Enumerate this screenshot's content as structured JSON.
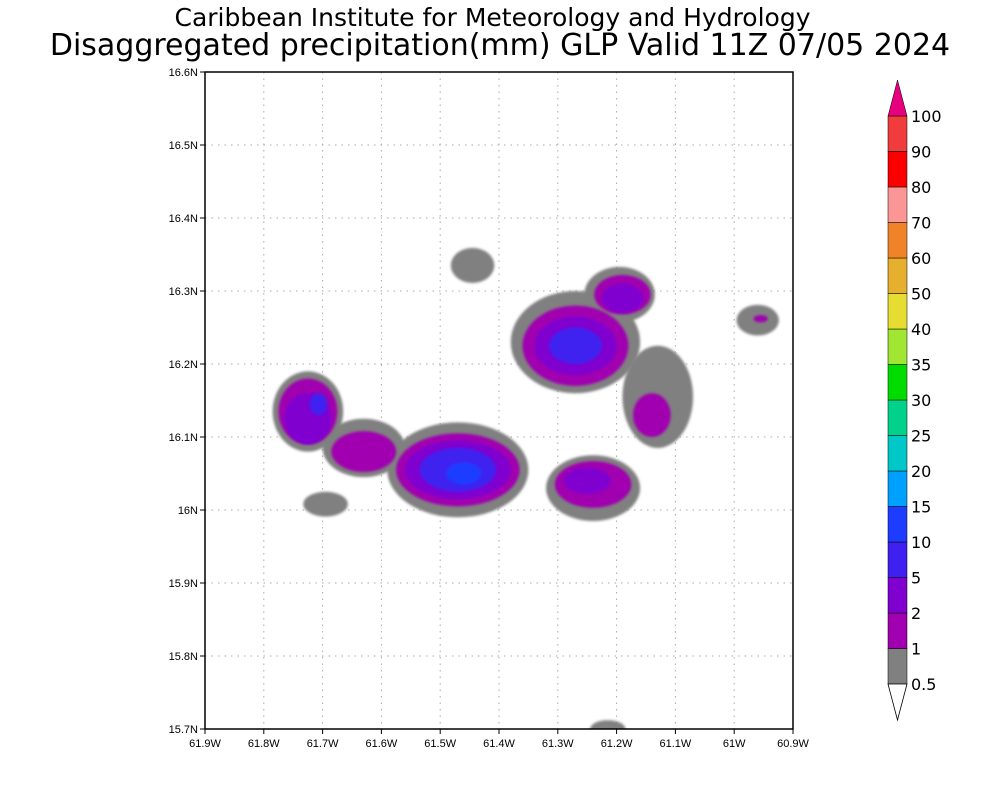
{
  "header": {
    "title_line1": "Caribbean Institute for Meteorology and Hydrology",
    "title_line2": "Disaggregated precipitation(mm) GLP Valid 11Z 07/05 2024"
  },
  "map": {
    "lon_range": [
      -61.9,
      -60.9
    ],
    "lat_range": [
      15.7,
      16.6
    ],
    "x_tick_labels": [
      "61.9W",
      "61.8W",
      "61.7W",
      "61.6W",
      "61.5W",
      "61.4W",
      "61.3W",
      "61.2W",
      "61.1W",
      "61W",
      "60.9W"
    ],
    "y_tick_labels": [
      "15.7N",
      "15.8N",
      "15.9N",
      "16N",
      "16.1N",
      "16.2N",
      "16.3N",
      "16.4N",
      "16.5N",
      "16.6N"
    ],
    "grid": "dotted",
    "precip_cells": [
      {
        "lon": -61.725,
        "lat": 16.135,
        "rx": 0.06,
        "ry": 0.055,
        "level": 0.5
      },
      {
        "lon": -61.63,
        "lat": 16.085,
        "rx": 0.07,
        "ry": 0.04,
        "level": 0.5
      },
      {
        "lon": -61.47,
        "lat": 16.055,
        "rx": 0.12,
        "ry": 0.065,
        "level": 0.5
      },
      {
        "lon": -61.695,
        "lat": 16.008,
        "rx": 0.038,
        "ry": 0.017,
        "level": 0.5
      },
      {
        "lon": -61.445,
        "lat": 16.335,
        "rx": 0.037,
        "ry": 0.024,
        "level": 0.5
      },
      {
        "lon": -61.27,
        "lat": 16.23,
        "rx": 0.11,
        "ry": 0.07,
        "level": 0.5
      },
      {
        "lon": -61.195,
        "lat": 16.295,
        "rx": 0.06,
        "ry": 0.038,
        "level": 0.5
      },
      {
        "lon": -61.13,
        "lat": 16.155,
        "rx": 0.06,
        "ry": 0.07,
        "level": 0.5
      },
      {
        "lon": -61.24,
        "lat": 16.03,
        "rx": 0.08,
        "ry": 0.045,
        "level": 0.5
      },
      {
        "lon": -60.96,
        "lat": 16.26,
        "rx": 0.036,
        "ry": 0.021,
        "level": 0.5
      },
      {
        "lon": -61.215,
        "lat": 15.7,
        "rx": 0.03,
        "ry": 0.012,
        "level": 0.5
      },
      {
        "lon": -61.725,
        "lat": 16.135,
        "rx": 0.05,
        "ry": 0.045,
        "level": 1
      },
      {
        "lon": -61.63,
        "lat": 16.08,
        "rx": 0.055,
        "ry": 0.028,
        "level": 1
      },
      {
        "lon": -61.47,
        "lat": 16.055,
        "rx": 0.105,
        "ry": 0.05,
        "level": 1
      },
      {
        "lon": -61.27,
        "lat": 16.225,
        "rx": 0.09,
        "ry": 0.055,
        "level": 1
      },
      {
        "lon": -61.19,
        "lat": 16.295,
        "rx": 0.048,
        "ry": 0.027,
        "level": 1
      },
      {
        "lon": -61.14,
        "lat": 16.13,
        "rx": 0.032,
        "ry": 0.03,
        "level": 1
      },
      {
        "lon": -61.24,
        "lat": 16.035,
        "rx": 0.065,
        "ry": 0.032,
        "level": 1
      },
      {
        "lon": -60.955,
        "lat": 16.262,
        "rx": 0.012,
        "ry": 0.005,
        "level": 1
      },
      {
        "lon": -61.725,
        "lat": 16.125,
        "rx": 0.04,
        "ry": 0.035,
        "level": 2
      },
      {
        "lon": -61.47,
        "lat": 16.055,
        "rx": 0.09,
        "ry": 0.04,
        "level": 2
      },
      {
        "lon": -61.27,
        "lat": 16.225,
        "rx": 0.07,
        "ry": 0.04,
        "level": 2
      },
      {
        "lon": -61.19,
        "lat": 16.29,
        "rx": 0.035,
        "ry": 0.02,
        "level": 2
      },
      {
        "lon": -61.25,
        "lat": 16.04,
        "rx": 0.04,
        "ry": 0.018,
        "level": 2
      },
      {
        "lon": -61.47,
        "lat": 16.055,
        "rx": 0.065,
        "ry": 0.03,
        "level": 5
      },
      {
        "lon": -61.27,
        "lat": 16.225,
        "rx": 0.045,
        "ry": 0.025,
        "level": 5
      },
      {
        "lon": -61.707,
        "lat": 16.145,
        "rx": 0.015,
        "ry": 0.015,
        "level": 5
      },
      {
        "lon": -61.46,
        "lat": 16.05,
        "rx": 0.03,
        "ry": 0.015,
        "level": 10
      }
    ]
  },
  "colorbar": {
    "levels": [
      {
        "label": "0.5",
        "color": "#808080"
      },
      {
        "label": "1",
        "color": "#a000b0"
      },
      {
        "label": "2",
        "color": "#8000d0"
      },
      {
        "label": "5",
        "color": "#4020f0"
      },
      {
        "label": "10",
        "color": "#1e3cff"
      },
      {
        "label": "15",
        "color": "#00a0ff"
      },
      {
        "label": "20",
        "color": "#00c8c8"
      },
      {
        "label": "25",
        "color": "#00d28c"
      },
      {
        "label": "30",
        "color": "#00dc00"
      },
      {
        "label": "35",
        "color": "#a0e632"
      },
      {
        "label": "40",
        "color": "#e6dc32"
      },
      {
        "label": "50",
        "color": "#e6af2d"
      },
      {
        "label": "60",
        "color": "#f08228"
      },
      {
        "label": "70",
        "color": "#fa9696"
      },
      {
        "label": "80",
        "color": "#fa0000"
      },
      {
        "label": "90",
        "color": "#f03c3c"
      },
      {
        "label": "100",
        "color": "#e6007d"
      }
    ]
  }
}
